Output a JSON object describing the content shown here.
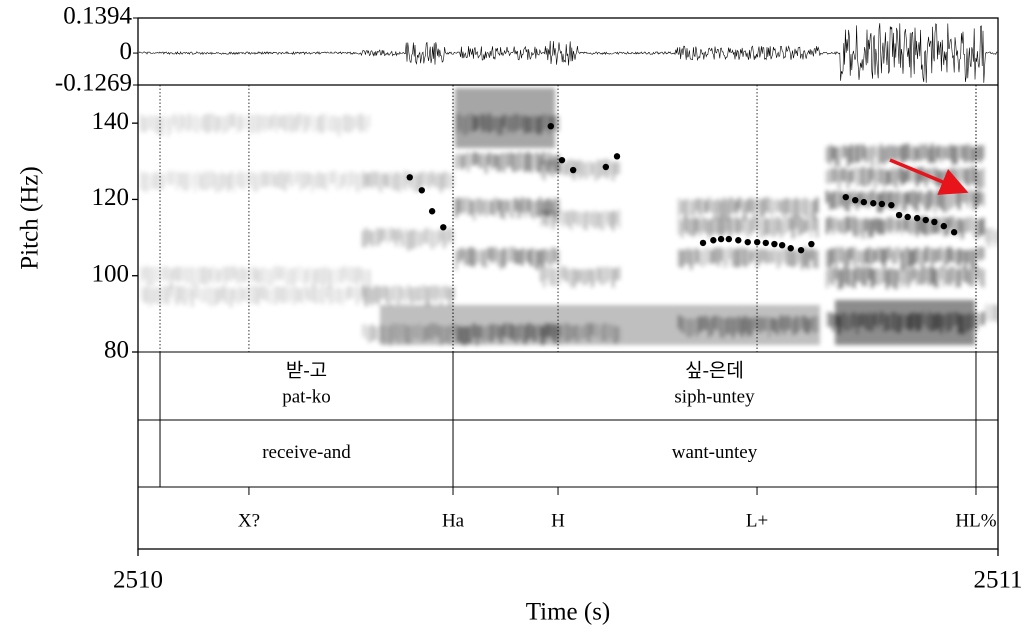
{
  "chart_data": {
    "type": "scatter",
    "y_label": "Pitch (Hz)",
    "x_label": "Time (s)",
    "xlim": [
      2510,
      2511
    ],
    "xticks": [
      2510,
      2511
    ],
    "ylim": [
      80,
      150
    ],
    "yticks": [
      80,
      100,
      120,
      140
    ],
    "color": "#000000",
    "x": [
      2510.316,
      2510.33,
      2510.342,
      2510.355,
      2510.48,
      2510.493,
      2510.506,
      2510.544,
      2510.557,
      2510.657,
      2510.669,
      2510.678,
      2510.687,
      2510.698,
      2510.709,
      2510.72,
      2510.73,
      2510.74,
      2510.749,
      2510.759,
      2510.771,
      2510.783,
      2510.823,
      2510.834,
      2510.844,
      2510.855,
      2510.865,
      2510.876,
      2510.885,
      2510.895,
      2510.906,
      2510.916,
      2510.926,
      2510.937,
      2510.949
    ],
    "values": [
      125.8,
      122.4,
      116.9,
      112.7,
      139.2,
      130.3,
      127.7,
      128.5,
      131.3,
      108.6,
      109.3,
      109.6,
      109.6,
      109.3,
      108.8,
      108.8,
      108.6,
      108.3,
      108.0,
      107.2,
      106.7,
      108.3,
      120.6,
      119.8,
      119.3,
      119.0,
      118.8,
      118.5,
      115.9,
      115.4,
      115.1,
      114.6,
      114.1,
      113.0,
      111.4
    ],
    "waveform": {
      "ylim": [
        -0.1269,
        0.1394
      ],
      "yticks": [
        -0.1269,
        0,
        0.1394
      ]
    },
    "tiers": [
      {
        "boundaries": [
          2510.0256,
          2510.3663,
          2510.9744
        ],
        "labels": [
          [
            "받-고",
            "pat-ko"
          ],
          [
            "싶-은데",
            "siph-untey"
          ]
        ]
      },
      {
        "boundaries": [
          2510.0256,
          2510.3663,
          2510.9744
        ],
        "labels": [
          [
            "receive-and"
          ],
          [
            "want-untey"
          ]
        ]
      },
      {
        "points": [
          2510.129,
          2510.3663,
          2510.4884,
          2510.7198,
          2510.9744
        ],
        "labels": [
          "X?",
          "Ha",
          "H",
          "L+",
          "HL%"
        ]
      }
    ]
  }
}
